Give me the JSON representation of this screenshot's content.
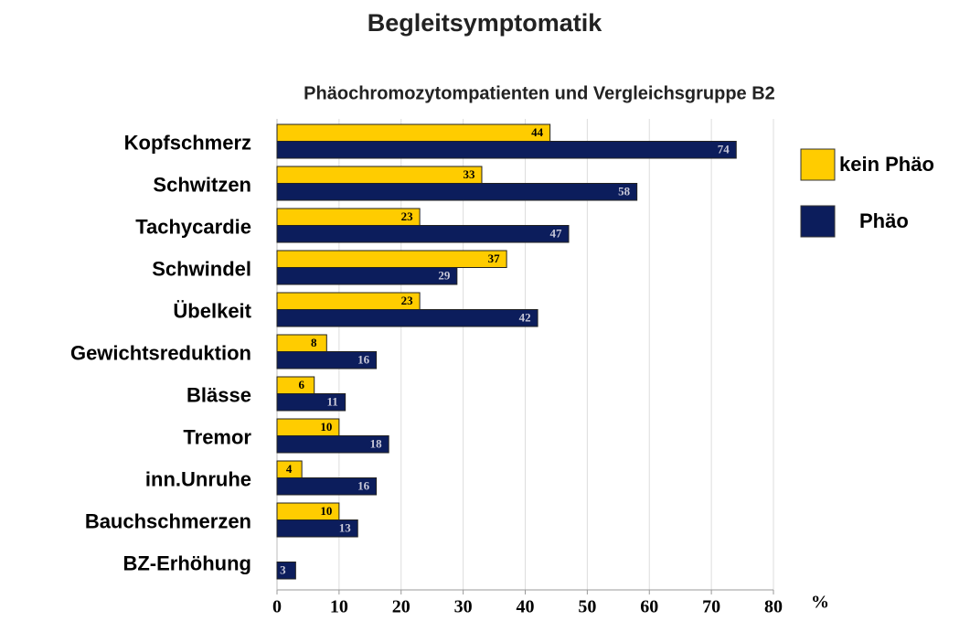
{
  "chart_data": {
    "type": "bar",
    "orientation": "horizontal",
    "title": "Begleitsymptomatik",
    "subtitle": "Phäochromozytompatienten und Vergleichsgruppe B2",
    "x_label": "%",
    "categories": [
      "Kopfschmerz",
      "Schwitzen",
      "Tachycardie",
      "Schwindel",
      "Übelkeit",
      "Gewichtsreduktion",
      "Blässe",
      "Tremor",
      "inn.Unruhe",
      "Bauchschmerzen",
      "BZ-Erhöhung"
    ],
    "series": [
      {
        "name": "kein Phäo",
        "color": "#ffcc00",
        "values": [
          44,
          33,
          23,
          37,
          23,
          8,
          6,
          10,
          4,
          10,
          0
        ]
      },
      {
        "name": "Phäo",
        "color": "#0c1d5c",
        "values": [
          74,
          58,
          47,
          29,
          42,
          16,
          11,
          18,
          16,
          13,
          3
        ]
      }
    ],
    "xlim": [
      0,
      80
    ],
    "xticks": [
      0,
      10,
      20,
      30,
      40,
      50,
      60,
      70,
      80
    ],
    "grid": true,
    "legend": "right"
  }
}
